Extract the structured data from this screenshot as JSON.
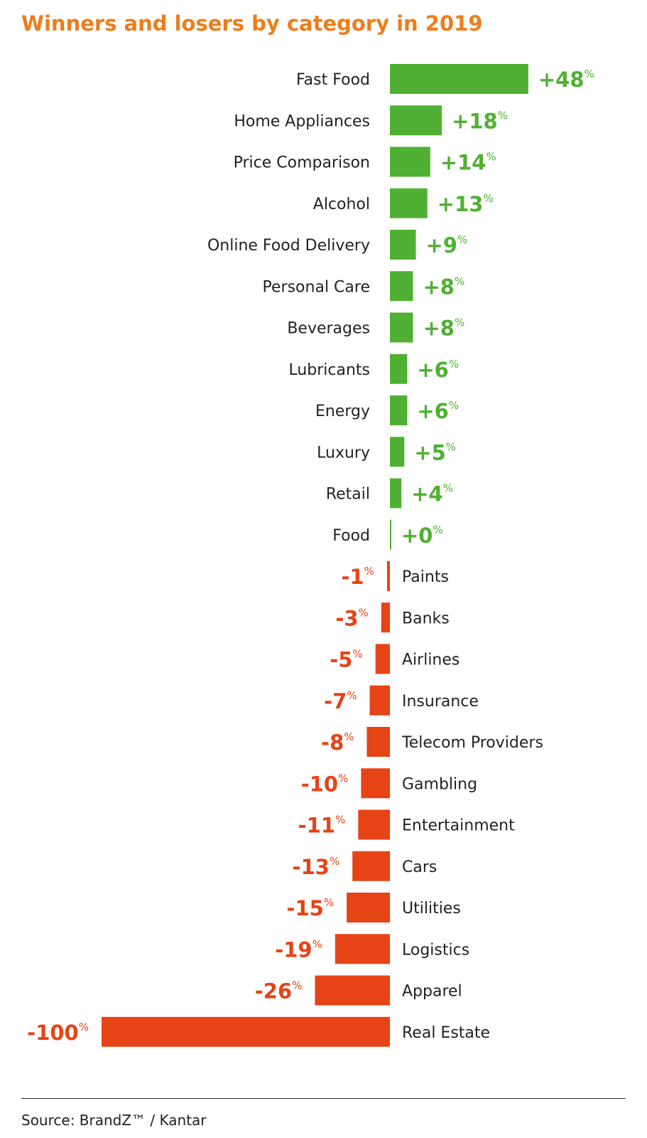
{
  "title": "Winners and losers by category in 2019",
  "source": "Source: BrandZ™ / Kantar",
  "colors": {
    "title": "#ee7d1a",
    "positive": "#50b033",
    "negative": "#e64316",
    "text": "#222222"
  },
  "chart_data": {
    "type": "bar",
    "orientation": "horizontal",
    "unit": "%",
    "categories": [
      "Fast Food",
      "Home Appliances",
      "Price Comparison",
      "Alcohol",
      "Online Food Delivery",
      "Personal Care",
      "Beverages",
      "Lubricants",
      "Energy",
      "Luxury",
      "Retail",
      "Food",
      "Paints",
      "Banks",
      "Airlines",
      "Insurance",
      "Telecom Providers",
      "Gambling",
      "Entertainment",
      "Cars",
      "Utilities",
      "Logistics",
      "Apparel",
      "Real Estate"
    ],
    "values": [
      48,
      18,
      14,
      13,
      9,
      8,
      8,
      6,
      6,
      5,
      4,
      0,
      -1,
      -3,
      -5,
      -7,
      -8,
      -10,
      -11,
      -13,
      -15,
      -19,
      -26,
      -100
    ],
    "labels": [
      "+48",
      "+18",
      "+14",
      "+13",
      "+9",
      "+8",
      "+8",
      "+6",
      "+6",
      "+5",
      "+4",
      "+0",
      "-1",
      "-3",
      "-5",
      "-7",
      "-8",
      "-10",
      "-11",
      "-13",
      "-15",
      "-19",
      "-26",
      "-100"
    ],
    "xlim": [
      -100,
      48
    ],
    "grid": false,
    "legend": "none"
  }
}
